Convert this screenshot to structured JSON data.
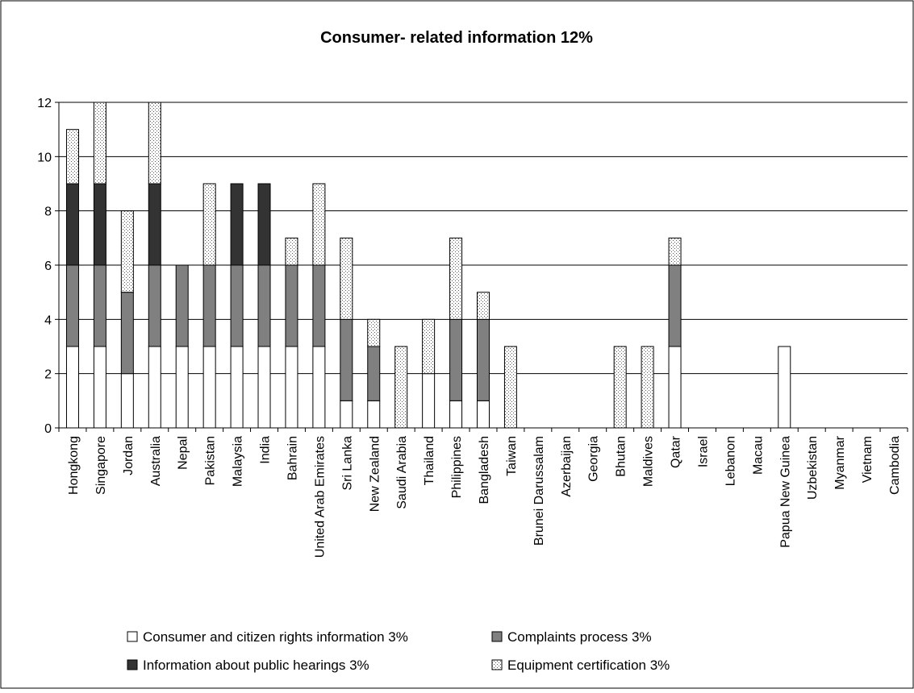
{
  "chart_data": {
    "type": "bar",
    "stacked": true,
    "title": "Consumer- related information 12%",
    "xlabel": "",
    "ylabel": "",
    "ylim": [
      0,
      12
    ],
    "yticks": [
      "0",
      "2",
      "4",
      "6",
      "8",
      "10",
      "12"
    ],
    "grid": true,
    "legend_position": "bottom",
    "categories": [
      "Hongkong",
      "Singapore",
      "Jordan",
      "Australia",
      "Nepal",
      "Pakistan",
      "Malaysia",
      "India",
      "Bahrain",
      "United Arab Emirates",
      "Sri Lanka",
      "New Zealand",
      "Saudi Arabia",
      "Thailand",
      "Philippines",
      "Bangladesh",
      "Taiwan",
      "Brunei Darussalam",
      "Azerbaijan",
      "Georgia",
      "Bhutan",
      "Maldives",
      "Qatar",
      "Israel",
      "Lebanon",
      "Macau",
      "Papua New Guinea",
      "Uzbekistan",
      "Myanmar",
      "Vietnam",
      "Cambodia"
    ],
    "series": [
      {
        "name": "Consumer and citizen rights information 3%",
        "color": "#ffffff",
        "pattern": "solid",
        "values": [
          3,
          3,
          2,
          3,
          3,
          3,
          3,
          3,
          3,
          3,
          1,
          1,
          0,
          2,
          1,
          1,
          0,
          0,
          0,
          0,
          0,
          0,
          3,
          0,
          0,
          0,
          3,
          0,
          0,
          0,
          0
        ]
      },
      {
        "name": "Complaints process 3%",
        "color": "#808080",
        "pattern": "solid",
        "values": [
          3,
          3,
          3,
          3,
          3,
          3,
          3,
          3,
          3,
          3,
          3,
          2,
          0,
          0,
          3,
          3,
          0,
          0,
          0,
          0,
          0,
          0,
          3,
          0,
          0,
          0,
          0,
          0,
          0,
          0,
          0
        ]
      },
      {
        "name": "Information about public hearings 3%",
        "color": "#333333",
        "pattern": "solid",
        "values": [
          3,
          3,
          0,
          3,
          0,
          0,
          3,
          3,
          0,
          0,
          0,
          0,
          0,
          0,
          0,
          0,
          0,
          0,
          0,
          0,
          0,
          0,
          0,
          0,
          0,
          0,
          0,
          0,
          0,
          0,
          0
        ]
      },
      {
        "name": "Equipment certification 3%",
        "color": "#ffffff",
        "pattern": "dots",
        "values": [
          2,
          3,
          3,
          3,
          0,
          3,
          0,
          0,
          1,
          3,
          3,
          1,
          3,
          2,
          3,
          1,
          3,
          0,
          0,
          0,
          3,
          3,
          1,
          0,
          0,
          0,
          0,
          0,
          0,
          0,
          0
        ]
      }
    ]
  }
}
